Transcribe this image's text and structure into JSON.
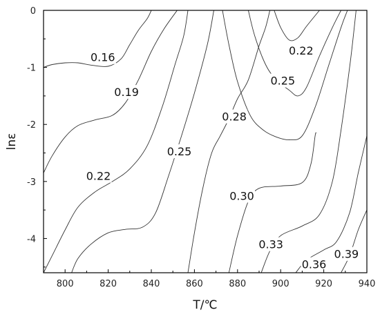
{
  "chart_data": {
    "type": "contour",
    "xlabel": "T/℃",
    "ylabel": "lnε",
    "xlim": [
      790,
      940
    ],
    "ylim": [
      -4.6,
      0
    ],
    "x_ticks": [
      800,
      820,
      840,
      860,
      880,
      900,
      920,
      940
    ],
    "y_ticks": [
      0,
      -1,
      -2,
      -3,
      -4
    ],
    "y_tick_labels": [
      "0",
      "-1",
      "-2",
      "-3",
      "-4"
    ],
    "contours": [
      {
        "level": "0.16",
        "points": [
          [
            790,
            -1.0
          ],
          [
            794,
            -0.95
          ],
          [
            800,
            -0.92
          ],
          [
            806,
            -0.92
          ],
          [
            812,
            -0.96
          ],
          [
            820,
            -0.98
          ],
          [
            826,
            -0.85
          ],
          [
            830,
            -0.6
          ],
          [
            834,
            -0.35
          ],
          [
            838,
            -0.15
          ],
          [
            840,
            0
          ]
        ]
      },
      {
        "level": "0.19",
        "points": [
          [
            790,
            -2.85
          ],
          [
            794,
            -2.55
          ],
          [
            800,
            -2.22
          ],
          [
            806,
            -2.02
          ],
          [
            814,
            -1.92
          ],
          [
            822,
            -1.84
          ],
          [
            828,
            -1.62
          ],
          [
            834,
            -1.22
          ],
          [
            840,
            -0.72
          ],
          [
            846,
            -0.32
          ],
          [
            852,
            0
          ]
        ]
      },
      {
        "level": "0.22",
        "points": [
          [
            790,
            -4.6
          ],
          [
            794,
            -4.3
          ],
          [
            800,
            -3.85
          ],
          [
            806,
            -3.45
          ],
          [
            814,
            -3.18
          ],
          [
            822,
            -3.0
          ],
          [
            830,
            -2.78
          ],
          [
            838,
            -2.38
          ],
          [
            845,
            -1.7
          ],
          [
            851,
            -0.95
          ],
          [
            855,
            -0.45
          ],
          [
            857,
            0
          ]
        ]
      },
      {
        "level": "0.25",
        "points": [
          [
            803,
            -4.6
          ],
          [
            806,
            -4.35
          ],
          [
            812,
            -4.1
          ],
          [
            820,
            -3.9
          ],
          [
            828,
            -3.84
          ],
          [
            836,
            -3.8
          ],
          [
            842,
            -3.55
          ],
          [
            848,
            -2.9
          ],
          [
            854,
            -2.2
          ],
          [
            860,
            -1.45
          ],
          [
            866,
            -0.6
          ],
          [
            869,
            0
          ]
        ]
      },
      {
        "level": "0.28",
        "points": [
          [
            857,
            -4.6
          ],
          [
            860,
            -3.9
          ],
          [
            864,
            -3.1
          ],
          [
            868,
            -2.5
          ],
          [
            872,
            -2.2
          ],
          [
            876,
            -1.9
          ],
          [
            880,
            -1.55
          ],
          [
            885,
            -1.22
          ],
          [
            890,
            -0.62
          ],
          [
            893,
            -0.3
          ],
          [
            895,
            0
          ]
        ]
      },
      {
        "level": "0.30",
        "points": [
          [
            876,
            -4.6
          ],
          [
            880,
            -3.95
          ],
          [
            885,
            -3.35
          ],
          [
            890,
            -3.12
          ],
          [
            900,
            -3.08
          ],
          [
            910,
            -3.02
          ],
          [
            914,
            -2.7
          ],
          [
            916,
            -2.2
          ],
          [
            916.5,
            -2.15
          ]
        ]
      },
      {
        "level": "0.33",
        "points": [
          [
            891,
            -4.6
          ],
          [
            895,
            -4.22
          ],
          [
            900,
            -3.95
          ],
          [
            910,
            -3.78
          ],
          [
            918,
            -3.58
          ],
          [
            924,
            -3.0
          ],
          [
            928,
            -2.1
          ],
          [
            932,
            -1.0
          ],
          [
            934,
            -0.35
          ],
          [
            935,
            0
          ]
        ]
      },
      {
        "level": "0.36",
        "points": [
          [
            907,
            -4.6
          ],
          [
            912,
            -4.38
          ],
          [
            920,
            -4.2
          ],
          [
            926,
            -4.05
          ],
          [
            932,
            -3.55
          ],
          [
            936,
            -2.85
          ],
          [
            940,
            -2.2
          ]
        ]
      },
      {
        "level": "0.39",
        "points": [
          [
            928,
            -4.6
          ],
          [
            932,
            -4.3
          ],
          [
            936,
            -3.85
          ],
          [
            940,
            -3.5
          ]
        ]
      },
      {
        "level": "0.22",
        "points": [
          [
            897,
            0
          ],
          [
            900,
            -0.3
          ],
          [
            904,
            -0.52
          ],
          [
            908,
            -0.48
          ],
          [
            912,
            -0.28
          ],
          [
            918,
            0
          ]
        ]
      },
      {
        "level": "0.25",
        "points": [
          [
            885,
            0
          ],
          [
            888,
            -0.45
          ],
          [
            893,
            -0.95
          ],
          [
            898,
            -1.22
          ],
          [
            904,
            -1.4
          ],
          [
            908,
            -1.5
          ],
          [
            912,
            -1.35
          ],
          [
            918,
            -0.8
          ],
          [
            924,
            -0.3
          ],
          [
            928,
            0
          ]
        ]
      },
      {
        "level": "0.28",
        "points": [
          [
            873,
            0
          ],
          [
            876,
            -0.6
          ],
          [
            880,
            -1.25
          ],
          [
            886,
            -1.85
          ],
          [
            892,
            -2.1
          ],
          [
            898,
            -2.22
          ],
          [
            904,
            -2.27
          ],
          [
            910,
            -2.2
          ],
          [
            916,
            -1.7
          ],
          [
            922,
            -1.0
          ],
          [
            928,
            -0.3
          ],
          [
            931,
            0
          ]
        ]
      }
    ],
    "labels": [
      {
        "text": "0.16",
        "x": 817.5,
        "y": -0.82
      },
      {
        "text": "0.19",
        "x": 828.5,
        "y": -1.43
      },
      {
        "text": "0.22",
        "x": 815.5,
        "y": -2.9
      },
      {
        "text": "0.25",
        "x": 853.0,
        "y": -2.47
      },
      {
        "text": "0.28",
        "x": 878.5,
        "y": -1.86
      },
      {
        "text": "0.30",
        "x": 882.0,
        "y": -3.25
      },
      {
        "text": "0.33",
        "x": 895.5,
        "y": -4.1
      },
      {
        "text": "0.36",
        "x": 915.5,
        "y": -4.45
      },
      {
        "text": "0.39",
        "x": 930.5,
        "y": -4.27
      },
      {
        "text": "0.22",
        "x": 909.5,
        "y": -0.7
      },
      {
        "text": "0.25",
        "x": 901.0,
        "y": -1.23
      }
    ]
  }
}
